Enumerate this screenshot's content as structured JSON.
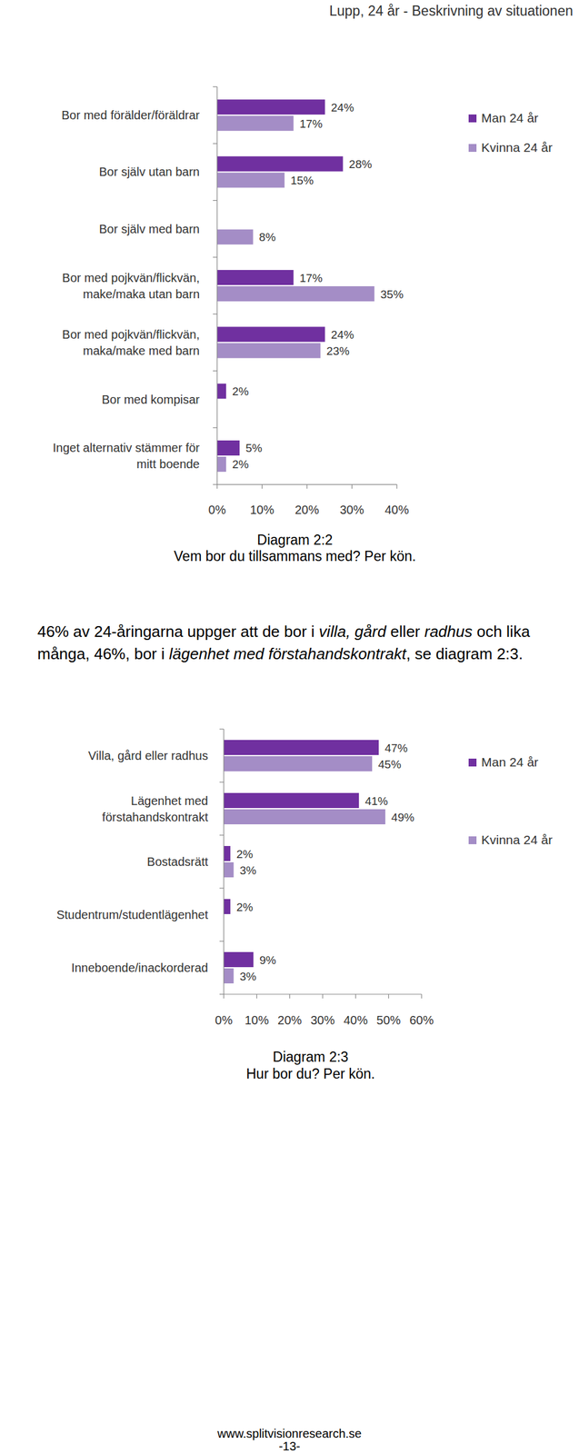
{
  "header": {
    "title": "Lupp, 24 år - Beskrivning av situationen"
  },
  "chart_data": [
    {
      "type": "bar",
      "orientation": "horizontal",
      "title": "Diagram 2:2",
      "subtitle": "Vem bor du tillsammans med? Per kön.",
      "categories": [
        "Bor med förälder/föräldrar",
        "Bor själv utan barn",
        "Bor själv med barn",
        "Bor med pojkvän/flickvän,\nmake/maka utan barn",
        "Bor med pojkvän/flickvän,\nmaka/make med barn",
        "Bor med kompisar",
        "Inget alternativ stämmer för\nmitt boende"
      ],
      "series": [
        {
          "name": "Man 24 år",
          "color": "#7030a0",
          "values": [
            24,
            28,
            null,
            17,
            24,
            2,
            5
          ],
          "value_labels": [
            "24%",
            "28%",
            null,
            "17%",
            "24%",
            "2%",
            "5%"
          ]
        },
        {
          "name": "Kvinna 24 år",
          "color": "#a48dc6",
          "values": [
            17,
            15,
            8,
            35,
            23,
            null,
            2
          ],
          "value_labels": [
            "17%",
            "15%",
            "8%",
            "35%",
            "23%",
            null,
            "2%"
          ]
        }
      ],
      "xlim": [
        0,
        40
      ],
      "xticks": [
        {
          "value": 0,
          "label": "0%"
        },
        {
          "value": 10,
          "label": "10%"
        },
        {
          "value": 20,
          "label": "20%"
        },
        {
          "value": 30,
          "label": "30%"
        },
        {
          "value": 40,
          "label": "40%"
        }
      ],
      "data_labels": true,
      "legend": "right",
      "grid": false
    },
    {
      "type": "bar",
      "orientation": "horizontal",
      "title": "Diagram 2:3",
      "subtitle": "Hur bor du? Per kön.",
      "categories": [
        "Villa, gård eller radhus",
        "Lägenhet med\nförstahandskontrakt",
        "Bostadsrätt",
        "Studentrum/studentlägenhet",
        "Inneboende/inackorderad"
      ],
      "series": [
        {
          "name": "Man 24 år",
          "color": "#7030a0",
          "values": [
            47,
            41,
            2,
            2,
            9
          ],
          "value_labels": [
            "47%",
            "41%",
            "2%",
            "2%",
            "9%"
          ]
        },
        {
          "name": "Kvinna 24 år",
          "color": "#a48dc6",
          "values": [
            45,
            49,
            3,
            null,
            3
          ],
          "value_labels": [
            "45%",
            "49%",
            "3%",
            null,
            "3%"
          ]
        }
      ],
      "xlim": [
        0,
        60
      ],
      "xticks": [
        {
          "value": 0,
          "label": "0%"
        },
        {
          "value": 10,
          "label": "10%"
        },
        {
          "value": 20,
          "label": "20%"
        },
        {
          "value": 30,
          "label": "30%"
        },
        {
          "value": 40,
          "label": "40%"
        },
        {
          "value": 50,
          "label": "50%"
        },
        {
          "value": 60,
          "label": "60%"
        }
      ],
      "data_labels": true,
      "legend": "right",
      "grid": false
    }
  ],
  "paragraph": {
    "segments": [
      {
        "text": "46% av 24-åringarna uppger att de bor i ",
        "style": "normal"
      },
      {
        "text": "villa, gård",
        "style": "italic"
      },
      {
        "text": " eller ",
        "style": "normal"
      },
      {
        "text": "radhus",
        "style": "italic"
      },
      {
        "text": " och lika många, 46%, bor i ",
        "style": "normal"
      },
      {
        "text": "lägenhet med förstahandskontrakt",
        "style": "italic"
      },
      {
        "text": ", se diagram 2:3.",
        "style": "normal"
      }
    ]
  },
  "footer": {
    "url": "www.splitvisionresearch.se",
    "page": "-13-"
  }
}
